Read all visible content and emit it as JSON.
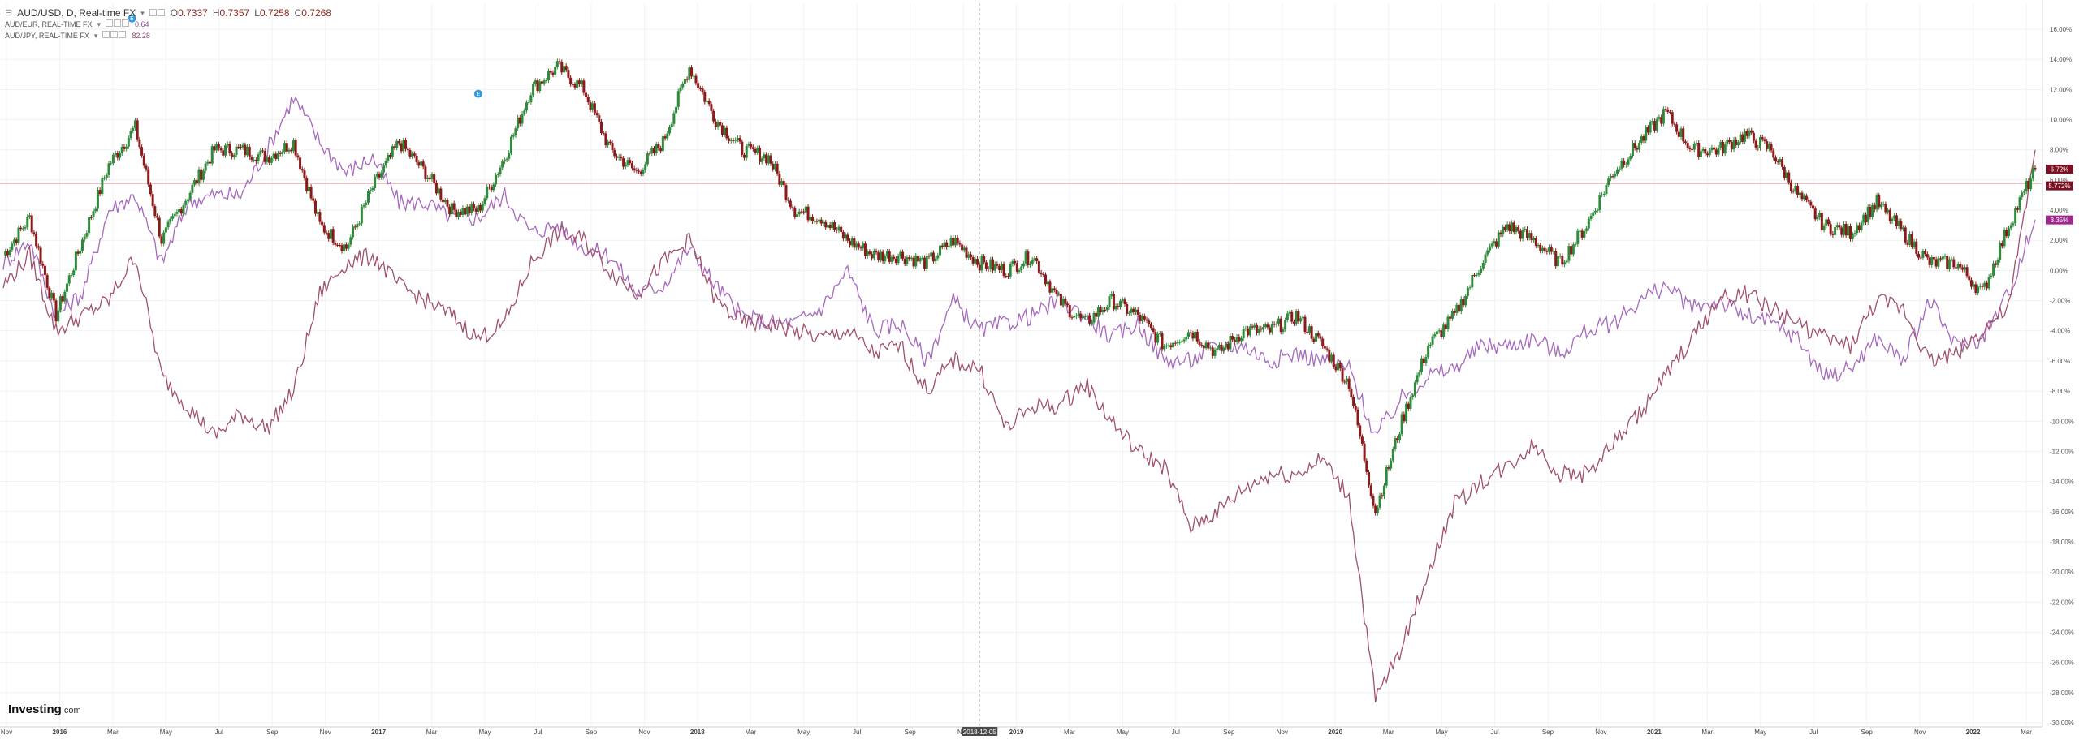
{
  "legend": {
    "main": {
      "symbol": "AUD/USD, D, Real-time FX",
      "open_label": "O",
      "open": "0.7337",
      "high_label": "H",
      "high": "0.7357",
      "low_label": "L",
      "low": "0.7258",
      "close_label": "C",
      "close": "0.7268"
    },
    "compare": [
      {
        "label": "AUD/EUR, REAL-TIME FX",
        "value": "0.64"
      },
      {
        "label": "AUD/JPY, REAL-TIME FX",
        "value": "82.28"
      }
    ]
  },
  "branding": {
    "logo": "Investing",
    "suffix": ".com"
  },
  "crosshair_date": "2018-12-05",
  "price_badges": [
    "6.72%",
    "5.772%",
    "3.35%"
  ],
  "colors": {
    "candle_up": "#2f8a3c",
    "candle_down": "#8b1a1a",
    "audeur_line": "#a569bd",
    "audjpy_line": "#a0506e",
    "hline": "#e39aa0",
    "badge_usd": "#7a1122",
    "badge_eur": "#9b2a8c",
    "event_marker": "#2f9ae0"
  },
  "chart_data": {
    "type": "line",
    "y_unit": "percent change",
    "ylim": [
      -30,
      18
    ],
    "y_ticks": [
      "16.00%",
      "14.00%",
      "12.00%",
      "10.00%",
      "8.00%",
      "6.00%",
      "4.00%",
      "2.00%",
      "0.00%",
      "-2.00%",
      "-4.00%",
      "-6.00%",
      "-8.00%",
      "-10.00%",
      "-12.00%",
      "-14.00%",
      "-16.00%",
      "-18.00%",
      "-20.00%",
      "-22.00%",
      "-24.00%",
      "-26.00%",
      "-28.00%",
      "-30.00%"
    ],
    "x_ticks": [
      "Nov",
      "2016",
      "Mar",
      "May",
      "Jul",
      "Sep",
      "Nov",
      "2017",
      "Mar",
      "May",
      "Jul",
      "Sep",
      "Nov",
      "2018",
      "Mar",
      "May",
      "Jul",
      "Sep",
      "Nov",
      "2019",
      "Mar",
      "May",
      "Jul",
      "Sep",
      "Nov",
      "2020",
      "Mar",
      "May",
      "Jul",
      "Sep",
      "Nov",
      "2021",
      "Mar",
      "May",
      "Jul",
      "Sep",
      "Nov",
      "2022",
      "Mar"
    ],
    "hline_value": 5.772,
    "x": [
      "2015-11",
      "2015-12",
      "2016-01",
      "2016-02",
      "2016-03",
      "2016-04",
      "2016-05",
      "2016-06",
      "2016-07",
      "2016-08",
      "2016-09",
      "2016-10",
      "2016-11",
      "2016-12",
      "2017-01",
      "2017-02",
      "2017-03",
      "2017-04",
      "2017-05",
      "2017-06",
      "2017-07",
      "2017-08",
      "2017-09",
      "2017-10",
      "2017-11",
      "2017-12",
      "2018-01",
      "2018-02",
      "2018-03",
      "2018-04",
      "2018-05",
      "2018-06",
      "2018-07",
      "2018-08",
      "2018-09",
      "2018-10",
      "2018-11",
      "2018-12",
      "2019-01",
      "2019-02",
      "2019-03",
      "2019-04",
      "2019-05",
      "2019-06",
      "2019-07",
      "2019-08",
      "2019-09",
      "2019-10",
      "2019-11",
      "2019-12",
      "2020-01",
      "2020-02",
      "2020-03",
      "2020-04",
      "2020-05",
      "2020-06",
      "2020-07",
      "2020-08",
      "2020-09",
      "2020-10",
      "2020-11",
      "2020-12",
      "2021-01",
      "2021-02",
      "2021-03",
      "2021-04",
      "2021-05",
      "2021-06",
      "2021-07",
      "2021-08",
      "2021-09",
      "2021-10",
      "2021-11",
      "2021-12",
      "2022-01",
      "2022-02",
      "2022-03",
      "2022-04"
    ],
    "series": [
      {
        "name": "AUD/USD, D, Real-time FX",
        "style": "candles",
        "values": [
          1.0,
          3.5,
          -3.0,
          2.0,
          7.0,
          9.5,
          2.0,
          5.0,
          8.0,
          8.0,
          7.5,
          8.5,
          3.0,
          1.5,
          5.5,
          8.5,
          6.5,
          4.0,
          4.0,
          7.5,
          12.0,
          13.5,
          12.0,
          8.0,
          6.5,
          8.5,
          13.5,
          10.0,
          8.0,
          7.5,
          4.0,
          3.5,
          2.0,
          1.0,
          1.0,
          0.5,
          2.0,
          0.5,
          0.0,
          1.0,
          -2.0,
          -3.5,
          -2.0,
          -3.0,
          -5.0,
          -4.0,
          -5.5,
          -4.0,
          -4.0,
          -3.0,
          -5.0,
          -7.5,
          -16.0,
          -10.0,
          -5.0,
          -3.0,
          0.5,
          3.0,
          2.0,
          0.5,
          3.0,
          6.5,
          8.5,
          10.5,
          8.0,
          8.0,
          9.0,
          8.0,
          5.0,
          3.0,
          2.5,
          4.5,
          2.5,
          0.5,
          0.5,
          -1.5,
          3.0,
          6.72
        ]
      },
      {
        "name": "AUD/EUR, REAL-TIME FX",
        "style": "line",
        "values": [
          0.5,
          2.0,
          -3.0,
          -1.5,
          4.0,
          5.0,
          0.5,
          4.5,
          5.0,
          5.0,
          8.0,
          11.5,
          8.5,
          6.5,
          7.5,
          4.5,
          4.5,
          3.5,
          3.5,
          5.0,
          2.5,
          3.0,
          1.5,
          1.0,
          -1.5,
          -1.0,
          1.5,
          -1.0,
          -3.0,
          -3.5,
          -3.5,
          -2.5,
          0.0,
          -4.0,
          -3.5,
          -6.0,
          -2.0,
          -4.0,
          -3.5,
          -3.0,
          -2.0,
          -3.0,
          -4.5,
          -3.5,
          -6.0,
          -6.0,
          -5.0,
          -5.0,
          -6.0,
          -5.5,
          -6.0,
          -6.5,
          -11.0,
          -8.5,
          -7.0,
          -6.5,
          -5.0,
          -5.0,
          -4.5,
          -5.5,
          -4.0,
          -3.5,
          -2.0,
          -1.0,
          -2.5,
          -2.0,
          -3.0,
          -3.5,
          -4.5,
          -7.0,
          -6.5,
          -4.5,
          -6.0,
          -2.0,
          -5.0,
          -4.5,
          -1.5,
          3.35
        ]
      },
      {
        "name": "AUD/JPY, REAL-TIME FX",
        "style": "line",
        "values": [
          -1.0,
          1.0,
          -4.0,
          -3.0,
          -2.0,
          1.0,
          -7.0,
          -9.0,
          -11.0,
          -9.5,
          -10.5,
          -8.0,
          -1.5,
          0.5,
          1.0,
          -1.0,
          -2.0,
          -3.0,
          -4.5,
          -3.5,
          0.5,
          2.5,
          2.0,
          0.0,
          -1.5,
          0.5,
          2.0,
          -2.0,
          -3.5,
          -3.5,
          -4.0,
          -4.5,
          -4.0,
          -5.5,
          -5.0,
          -8.0,
          -6.0,
          -6.5,
          -10.5,
          -9.0,
          -9.0,
          -7.5,
          -10.0,
          -12.0,
          -13.0,
          -17.0,
          -16.0,
          -14.5,
          -13.5,
          -13.5,
          -12.5,
          -15.0,
          -28.5,
          -25.0,
          -20.0,
          -15.5,
          -14.0,
          -13.0,
          -11.5,
          -13.5,
          -13.5,
          -11.5,
          -9.5,
          -7.0,
          -4.5,
          -2.0,
          -1.5,
          -2.5,
          -3.5,
          -4.5,
          -5.0,
          -2.0,
          -2.5,
          -6.0,
          -5.5,
          -4.0,
          -2.5,
          8.0
        ]
      }
    ],
    "events": [
      {
        "date": "2016-04",
        "label": "F"
      },
      {
        "date": "2016-04",
        "label": "E"
      },
      {
        "date": "2017-05",
        "label": "E"
      }
    ]
  }
}
